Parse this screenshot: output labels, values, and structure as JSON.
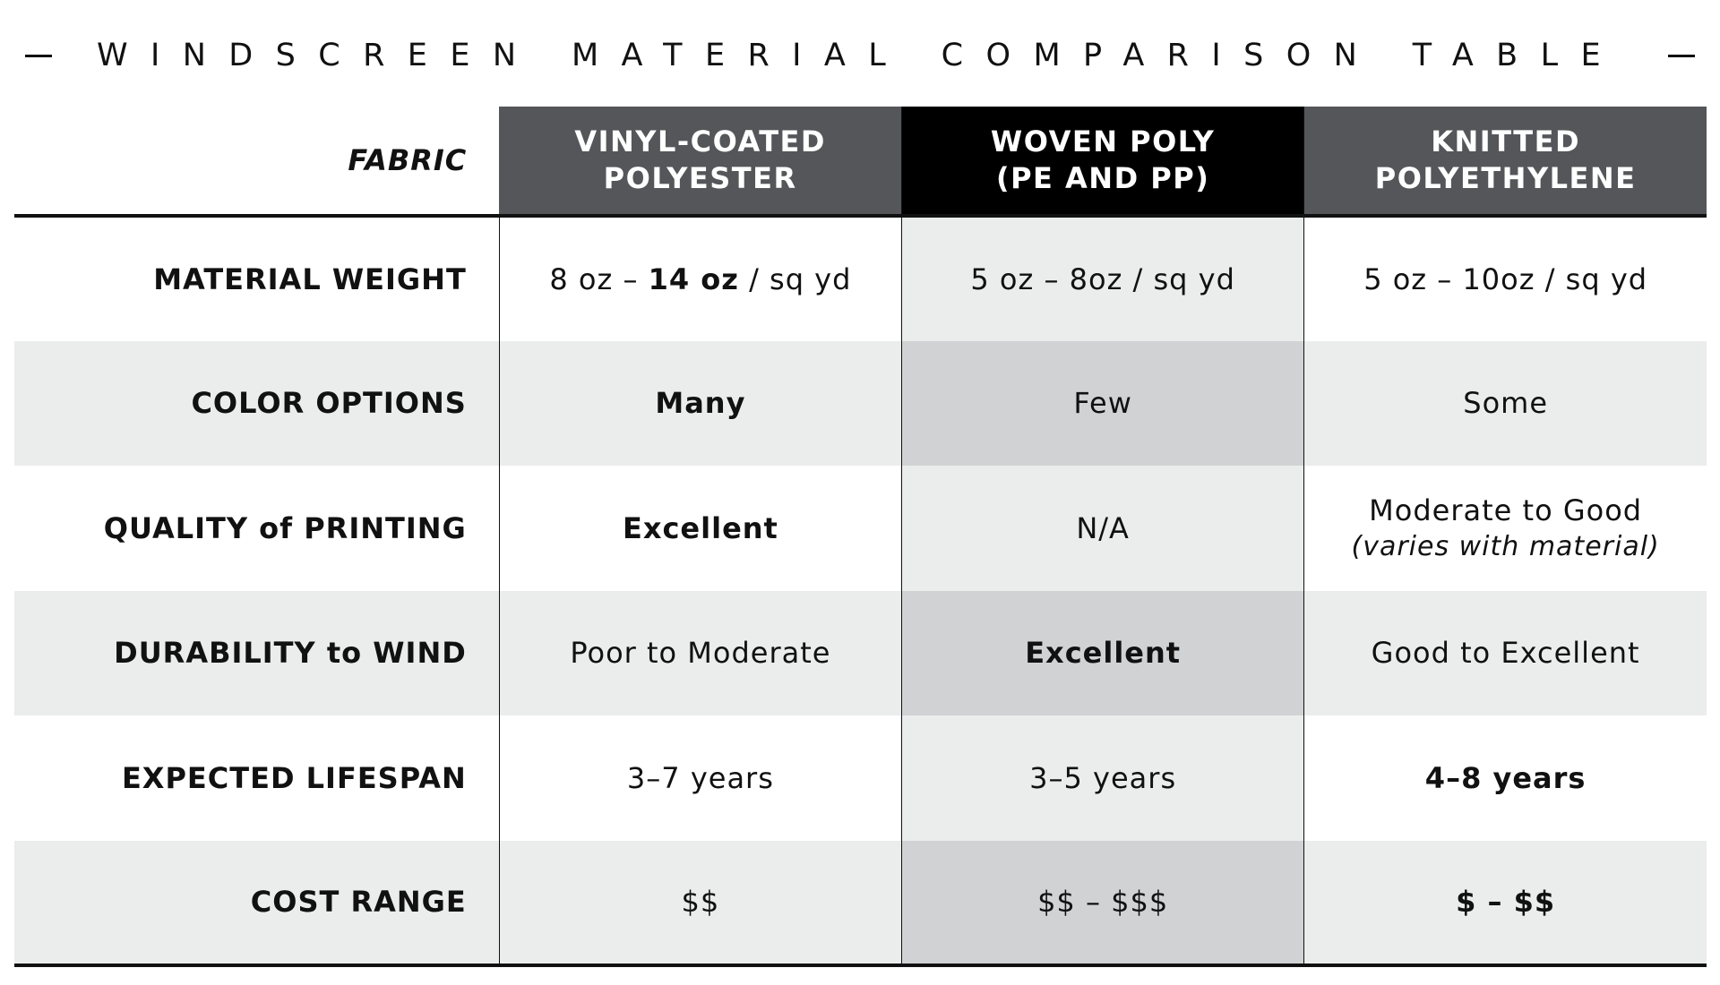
{
  "title": "WINDSCREEN MATERIAL COMPARISON TABLE",
  "header": {
    "fabric_label": "FABRIC",
    "columns": [
      {
        "line1": "VINYL-COATED",
        "line2": "POLYESTER",
        "color": "#55565a"
      },
      {
        "line1": "WOVEN POLY",
        "line2": "(PE AND PP)",
        "color": "#000000"
      },
      {
        "line1": "KNITTED",
        "line2": "POLYETHYLENE",
        "color": "#55565a"
      }
    ]
  },
  "rows": {
    "material_weight": {
      "label": "MATERIAL WEIGHT",
      "vinyl": {
        "pre": "8 oz – ",
        "bold": "14 oz",
        "post": " / sq yd"
      },
      "woven": "5 oz – 8oz / sq yd",
      "knitted": "5 oz – 10oz / sq yd"
    },
    "color_options": {
      "label": "COLOR OPTIONS",
      "vinyl": "Many",
      "woven": "Few",
      "knitted": "Some"
    },
    "quality_printing": {
      "label_pre": "QUALITY ",
      "label_of": "of",
      "label_post": " PRINTING",
      "vinyl": "Excellent",
      "woven": "N/A",
      "knitted": "Moderate to Good",
      "knitted_note": "(varies with material)"
    },
    "durability_wind": {
      "label_pre": "DURABILITY ",
      "label_to": "to",
      "label_post": " WIND",
      "vinyl": "Poor to Moderate",
      "woven": "Excellent",
      "knitted": "Good to Excellent"
    },
    "expected_lifespan": {
      "label": "EXPECTED LIFESPAN",
      "vinyl": "3–7 years",
      "woven": "3–5 years",
      "knitted": "4–8 years"
    },
    "cost_range": {
      "label": "COST RANGE",
      "vinyl": "$$",
      "woven": "$$ – $$$",
      "knitted": "$ – $$"
    }
  },
  "colors": {
    "header_gray": "#55565a",
    "header_black": "#000000",
    "row_gray": "#ebecec",
    "mid_gray": "#d1d2d4",
    "text": "#111111"
  }
}
